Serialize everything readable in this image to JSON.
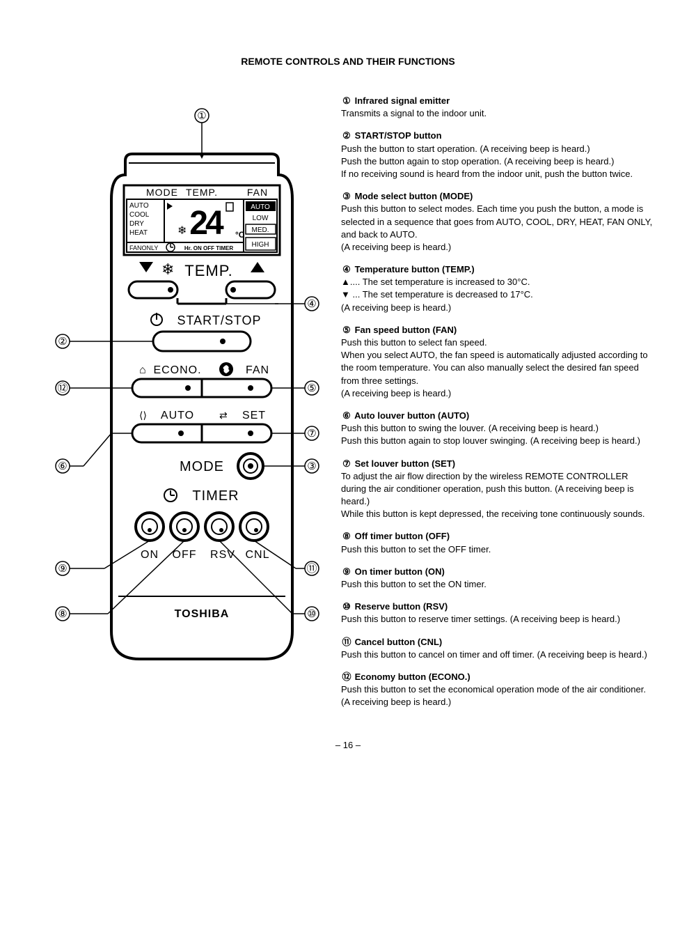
{
  "title": "REMOTE CONTROLS AND THEIR FUNCTIONS",
  "pagenum": "– 16 –",
  "remote": {
    "header_mode": "MODE",
    "header_temp": "TEMP.",
    "header_fan": "FAN",
    "modes": [
      "AUTO",
      "COOL",
      "DRY",
      "HEAT",
      "FANONLY"
    ],
    "temp_value": "24",
    "temp_unit": "°C",
    "fan_levels": [
      "AUTO",
      "LOW",
      "MED.",
      "HIGH"
    ],
    "timer_text": "Hr. ON OFF TIMER",
    "temp_row": "TEMP.",
    "startstop": "START/STOP",
    "econo": "ECONO.",
    "fan": "FAN",
    "auto": "AUTO",
    "set": "SET",
    "mode": "MODE",
    "timer": "TIMER",
    "on": "ON",
    "off": "OFF",
    "rsv": "RSV",
    "cnl": "CNL",
    "brand": "TOSHIBA"
  },
  "callouts": {
    "1": "①",
    "2": "②",
    "3": "③",
    "4": "④",
    "5": "⑤",
    "6": "⑥",
    "7": "⑦",
    "8": "⑧",
    "9": "⑨",
    "10": "⑩",
    "11": "⑪",
    "12": "⑫"
  },
  "items": [
    {
      "num": "①",
      "title": "Infrared signal emitter",
      "body": "Transmits a signal to the indoor unit."
    },
    {
      "num": "②",
      "title": "START/STOP button",
      "body": "Push the button to start operation. (A receiving beep is heard.)\nPush the button again to stop operation. (A receiving beep is heard.)\nIf no receiving sound is heard from the indoor unit, push the button twice."
    },
    {
      "num": "③",
      "title": "Mode select button (MODE)",
      "body": "Push this button to select modes. Each time you push the button, a mode is selected in a sequence that goes from AUTO, COOL, DRY, HEAT, FAN ONLY, and back to AUTO.\n(A receiving beep is heard.)"
    },
    {
      "num": "④",
      "title": "Temperature button (TEMP.)",
      "body": "▲.... The set temperature is increased to 30°C.\n▼ ... The set temperature is decreased to 17°C.\n       (A receiving beep is heard.)"
    },
    {
      "num": "⑤",
      "title": "Fan speed button (FAN)",
      "body": "Push this button to select fan speed.\nWhen you select AUTO, the fan speed is automatically adjusted according to the room temperature. You can also manually select the desired fan speed from three settings.\n(A receiving beep is heard.)"
    },
    {
      "num": "⑥",
      "title": "Auto louver button (AUTO)",
      "body": "Push this button to swing the louver. (A receiving beep is heard.)\nPush this button again to stop louver swinging. (A receiving beep is heard.)"
    },
    {
      "num": "⑦",
      "title": "Set louver button (SET)",
      "body": "To adjust the air flow direction by the wireless REMOTE CONTROLLER during the air conditioner operation, push this button. (A receiving beep is heard.)\nWhile this button is kept depressed, the receiving tone continuously sounds."
    },
    {
      "num": "⑧",
      "title": "Off timer button (OFF)",
      "body": "Push this button to set the OFF timer."
    },
    {
      "num": "⑨",
      "title": "On timer button (ON)",
      "body": "Push this button to set the ON timer."
    },
    {
      "num": "⑩",
      "title": "Reserve button (RSV)",
      "body": "Push this button to reserve timer settings. (A receiving beep is heard.)"
    },
    {
      "num": "⑪",
      "title": "Cancel button (CNL)",
      "body": "Push this button to cancel on timer and off timer.  (A receiving beep is heard.)"
    },
    {
      "num": "⑫",
      "title": "Economy button (ECONO.)",
      "body": "Push this button to set the economical operation mode of the air conditioner. (A receiving beep is heard.)"
    }
  ]
}
